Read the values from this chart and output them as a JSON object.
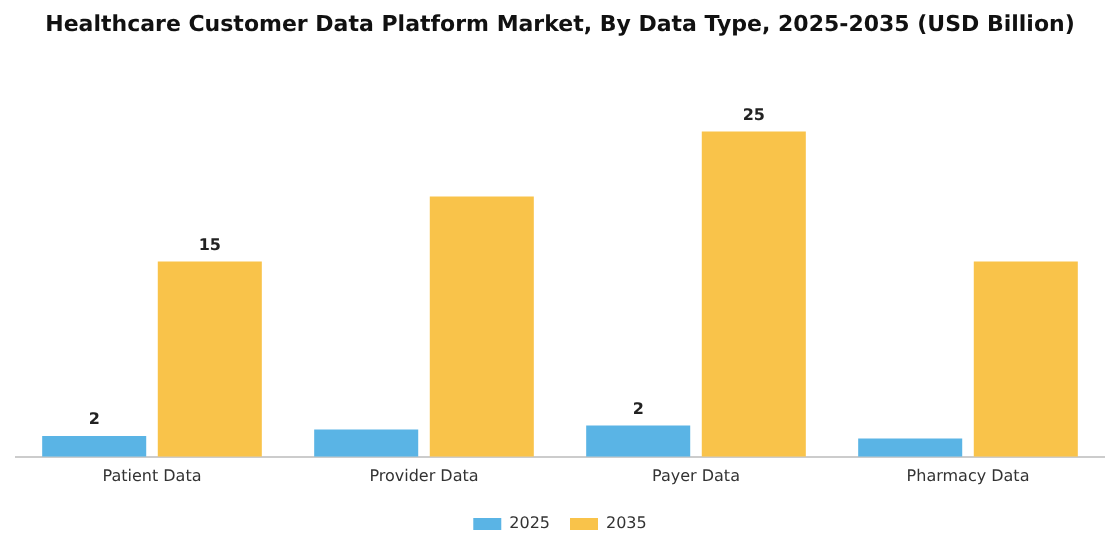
{
  "chart_data": {
    "type": "bar",
    "title": "Healthcare Customer Data Platform Market, By Data Type, 2025-2035 (USD Billion)",
    "categories": [
      "Patient Data",
      "Provider Data",
      "Payer Data",
      "Pharmacy Data"
    ],
    "series": [
      {
        "name": "2025",
        "color": "#5ab4e5",
        "values": [
          1.6,
          2.1,
          2.4,
          1.4
        ],
        "value_labels": [
          "2",
          null,
          "2",
          null
        ]
      },
      {
        "name": "2035",
        "color": "#f9c34a",
        "values": [
          15,
          20,
          25,
          15
        ],
        "value_labels": [
          "15",
          null,
          "25",
          null
        ]
      }
    ],
    "legend": "bottom",
    "grid": false
  }
}
